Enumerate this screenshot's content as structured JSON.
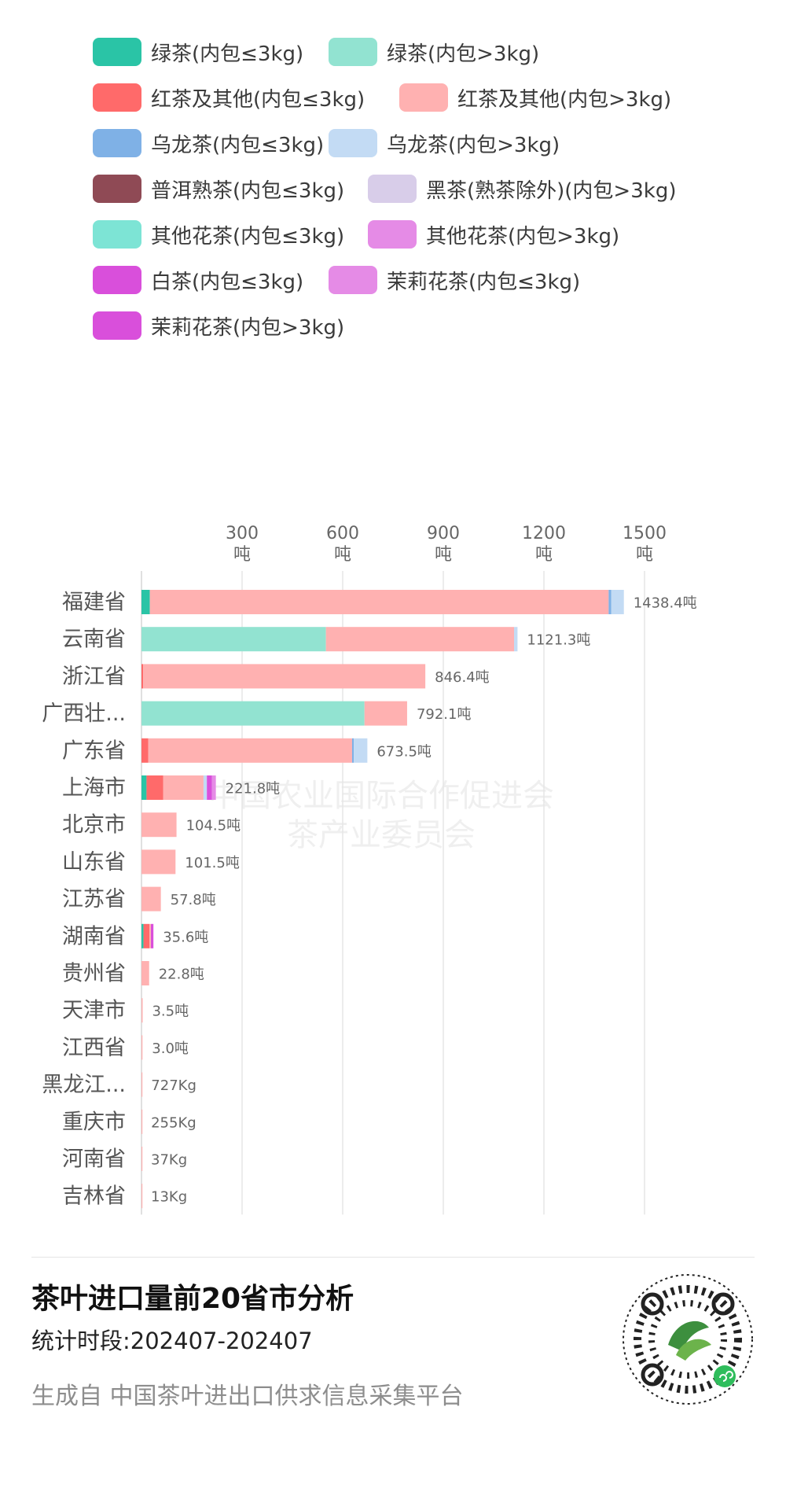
{
  "legend": [
    {
      "label": "绿茶(内包≤3kg)",
      "color": "#2ac4a6"
    },
    {
      "label": "绿茶(内包>3kg)",
      "color": "#92e3d1"
    },
    {
      "label": "红茶及其他(内包≤3kg)",
      "color": "#ff6a6a"
    },
    {
      "label": "红茶及其他(内包>3kg)",
      "color": "#ffb1b1"
    },
    {
      "label": "乌龙茶(内包≤3kg)",
      "color": "#7fb1e6"
    },
    {
      "label": "乌龙茶(内包>3kg)",
      "color": "#c3dbf4"
    },
    {
      "label": "普洱熟茶(内包≤3kg)",
      "color": "#8f4a55"
    },
    {
      "label": "黑茶(熟茶除外)(内包>3kg)",
      "color": "#d8cde9"
    },
    {
      "label": "其他花茶(内包≤3kg)",
      "color": "#7de4d5"
    },
    {
      "label": "其他花茶(内包>3kg)",
      "color": "#e58be6"
    },
    {
      "label": "白茶(内包≤3kg)",
      "color": "#d94fdb"
    },
    {
      "label": "茉莉花茶(内包≤3kg)",
      "color": "#e58be6"
    },
    {
      "label": "茉莉花茶(内包>3kg)",
      "color": "#d94fdb"
    }
  ],
  "chart_data": {
    "type": "bar",
    "orientation": "horizontal",
    "stacked": true,
    "unit": "吨",
    "xlim": [
      0,
      1500
    ],
    "ticks": [
      {
        "value": 300,
        "label": "300",
        "unit": "吨"
      },
      {
        "value": 600,
        "label": "600",
        "unit": "吨"
      },
      {
        "value": 900,
        "label": "900",
        "unit": "吨"
      },
      {
        "value": 1200,
        "label": "1200",
        "unit": "吨"
      },
      {
        "value": 1500,
        "label": "1500",
        "unit": "吨"
      }
    ],
    "grid": true,
    "legend_position": "top",
    "categories": [
      "福建省",
      "云南省",
      "浙江省",
      "广西壮...",
      "广东省",
      "上海市",
      "北京市",
      "山东省",
      "江苏省",
      "湖南省",
      "贵州省",
      "天津市",
      "江西省",
      "黑龙江...",
      "重庆市",
      "河南省",
      "吉林省"
    ],
    "totals": [
      1438.4,
      1121.3,
      846.4,
      792.1,
      673.5,
      221.8,
      104.5,
      101.5,
      57.8,
      35.6,
      22.8,
      3.5,
      3.0,
      0.727,
      0.255,
      0.037,
      0.013
    ],
    "total_labels": [
      "1438.4吨",
      "1121.3吨",
      "846.4吨",
      "792.1吨",
      "673.5吨",
      "221.8吨",
      "104.5吨",
      "101.5吨",
      "57.8吨",
      "35.6吨",
      "22.8吨",
      "3.5吨",
      "3.0吨",
      "727Kg",
      "255Kg",
      "37Kg",
      "13Kg"
    ],
    "segments": [
      [
        {
          "s": 0,
          "v": 25
        },
        {
          "s": 3,
          "v": 1368
        },
        {
          "s": 4,
          "v": 8
        },
        {
          "s": 5,
          "v": 37.4
        }
      ],
      [
        {
          "s": 1,
          "v": 550
        },
        {
          "s": 3,
          "v": 561
        },
        {
          "s": 5,
          "v": 10.3
        }
      ],
      [
        {
          "s": 2,
          "v": 5
        },
        {
          "s": 3,
          "v": 841.4
        }
      ],
      [
        {
          "s": 1,
          "v": 665
        },
        {
          "s": 3,
          "v": 127.1
        }
      ],
      [
        {
          "s": 2,
          "v": 20
        },
        {
          "s": 3,
          "v": 608
        },
        {
          "s": 4,
          "v": 5
        },
        {
          "s": 5,
          "v": 40.5
        }
      ],
      [
        {
          "s": 0,
          "v": 15
        },
        {
          "s": 2,
          "v": 50
        },
        {
          "s": 3,
          "v": 120
        },
        {
          "s": 5,
          "v": 10
        },
        {
          "s": 10,
          "v": 15
        },
        {
          "s": 9,
          "v": 11.8
        }
      ],
      [
        {
          "s": 3,
          "v": 104.5
        }
      ],
      [
        {
          "s": 3,
          "v": 101.5
        }
      ],
      [
        {
          "s": 3,
          "v": 57.8
        }
      ],
      [
        {
          "s": 0,
          "v": 6
        },
        {
          "s": 2,
          "v": 18
        },
        {
          "s": 3,
          "v": 4
        },
        {
          "s": 10,
          "v": 7.6
        }
      ],
      [
        {
          "s": 3,
          "v": 22.8
        }
      ],
      [
        {
          "s": 3,
          "v": 3.5
        }
      ],
      [
        {
          "s": 3,
          "v": 3.0
        }
      ],
      [
        {
          "s": 3,
          "v": 0.727
        }
      ],
      [
        {
          "s": 3,
          "v": 0.255
        }
      ],
      [
        {
          "s": 3,
          "v": 0.037
        }
      ],
      [
        {
          "s": 3,
          "v": 0.013
        }
      ]
    ]
  },
  "footer": {
    "title": "茶叶进口量前20省市分析",
    "period": "统计时段:202407-202407",
    "source": "生成自 中国茶叶进出口供求信息采集平台"
  },
  "watermark": {
    "line1": "中国农业国际合作促进会",
    "line2": "茶产业委员会"
  },
  "qr": {
    "icon": "qr-code-icon",
    "badge_color": "#2fbd5c"
  }
}
